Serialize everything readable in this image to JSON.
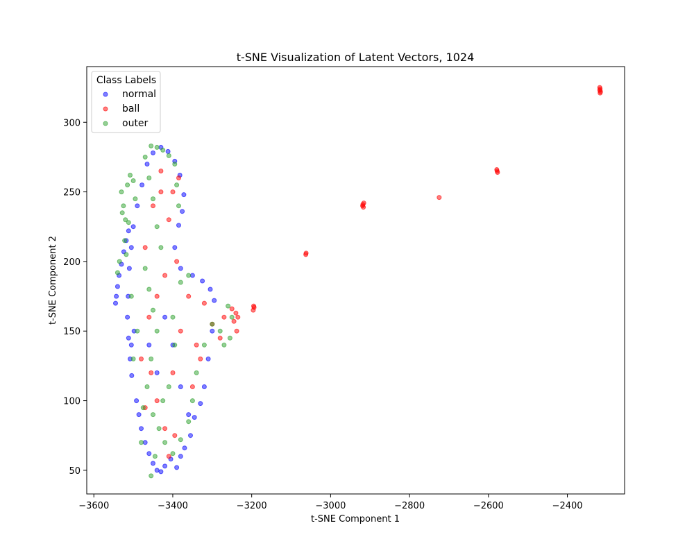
{
  "chart_data": {
    "type": "scatter",
    "title": "t-SNE Visualization of Latent Vectors, 1024",
    "xlabel": "t-SNE Component 1",
    "ylabel": "t-SNE Component 2",
    "xlim": [
      -3618,
      -2255
    ],
    "ylim": [
      33,
      340
    ],
    "xticks": [
      -3600,
      -3400,
      -3200,
      -3000,
      -2800,
      -2600,
      -2400
    ],
    "xtick_labels": [
      "−3600",
      "−3400",
      "−3200",
      "−3000",
      "−2800",
      "−2600",
      "−2400"
    ],
    "yticks": [
      50,
      100,
      150,
      200,
      250,
      300
    ],
    "ytick_labels": [
      "50",
      "100",
      "150",
      "200",
      "250",
      "300"
    ],
    "grid": false,
    "legend": {
      "title": "Class Labels",
      "placement": "top-left",
      "entries": [
        "normal",
        "ball",
        "outer"
      ]
    },
    "series": [
      {
        "name": "normal",
        "color": "#0000ff",
        "points": [
          [
            -3545,
            170
          ],
          [
            -3543,
            175
          ],
          [
            -3540,
            182
          ],
          [
            -3536,
            190
          ],
          [
            -3530,
            198
          ],
          [
            -3524,
            207
          ],
          [
            -3518,
            215
          ],
          [
            -3512,
            222
          ],
          [
            -3505,
            140
          ],
          [
            -3498,
            150
          ],
          [
            -3492,
            100
          ],
          [
            -3486,
            90
          ],
          [
            -3480,
            80
          ],
          [
            -3470,
            70
          ],
          [
            -3460,
            62
          ],
          [
            -3450,
            55
          ],
          [
            -3440,
            50
          ],
          [
            -3430,
            49
          ],
          [
            -3420,
            53
          ],
          [
            -3405,
            58
          ],
          [
            -3390,
            52
          ],
          [
            -3380,
            60
          ],
          [
            -3370,
            66
          ],
          [
            -3355,
            75
          ],
          [
            -3345,
            88
          ],
          [
            -3330,
            98
          ],
          [
            -3320,
            110
          ],
          [
            -3310,
            130
          ],
          [
            -3300,
            150
          ],
          [
            -3295,
            172
          ],
          [
            -3305,
            180
          ],
          [
            -3325,
            186
          ],
          [
            -3350,
            190
          ],
          [
            -3380,
            195
          ],
          [
            -3395,
            210
          ],
          [
            -3385,
            226
          ],
          [
            -3376,
            236
          ],
          [
            -3372,
            248
          ],
          [
            -3382,
            262
          ],
          [
            -3395,
            272
          ],
          [
            -3412,
            279
          ],
          [
            -3430,
            282
          ],
          [
            -3450,
            278
          ],
          [
            -3465,
            270
          ],
          [
            -3478,
            255
          ],
          [
            -3490,
            240
          ],
          [
            -3500,
            225
          ],
          [
            -3505,
            210
          ],
          [
            -3510,
            195
          ],
          [
            -3513,
            175
          ],
          [
            -3515,
            160
          ],
          [
            -3512,
            145
          ],
          [
            -3508,
            130
          ],
          [
            -3504,
            118
          ],
          [
            -3460,
            140
          ],
          [
            -3440,
            120
          ],
          [
            -3420,
            160
          ],
          [
            -3400,
            140
          ],
          [
            -3380,
            110
          ],
          [
            -3360,
            90
          ]
        ]
      },
      {
        "name": "ball",
        "color": "#ff0000",
        "points": [
          [
            -2318,
            323
          ],
          [
            -2317,
            324
          ],
          [
            -2316,
            322
          ],
          [
            -2317,
            321
          ],
          [
            -2318,
            325
          ],
          [
            -2578,
            265
          ],
          [
            -2579,
            266
          ],
          [
            -2577,
            264
          ],
          [
            -2725,
            246
          ],
          [
            -2918,
            241
          ],
          [
            -2917,
            239
          ],
          [
            -2919,
            240
          ],
          [
            -2916,
            242
          ],
          [
            -3062,
            206
          ],
          [
            -3063,
            205
          ],
          [
            -3195,
            168
          ],
          [
            -3196,
            165
          ],
          [
            -3194,
            167
          ],
          [
            -3235,
            160
          ],
          [
            -3238,
            150
          ],
          [
            -3240,
            163
          ],
          [
            -3245,
            157
          ],
          [
            -3250,
            166
          ],
          [
            -3480,
            130
          ],
          [
            -3460,
            160
          ],
          [
            -3440,
            100
          ],
          [
            -3420,
            80
          ],
          [
            -3400,
            120
          ],
          [
            -3380,
            150
          ],
          [
            -3360,
            175
          ],
          [
            -3340,
            140
          ],
          [
            -3320,
            170
          ],
          [
            -3300,
            155
          ],
          [
            -3470,
            210
          ],
          [
            -3450,
            240
          ],
          [
            -3430,
            265
          ],
          [
            -3410,
            230
          ],
          [
            -3390,
            200
          ],
          [
            -3420,
            190
          ],
          [
            -3440,
            175
          ],
          [
            -3410,
            60
          ],
          [
            -3395,
            75
          ],
          [
            -3470,
            95
          ],
          [
            -3455,
            120
          ],
          [
            -3385,
            260
          ],
          [
            -3400,
            250
          ],
          [
            -3430,
            250
          ],
          [
            -3350,
            110
          ],
          [
            -3330,
            130
          ],
          [
            -3280,
            145
          ],
          [
            -3270,
            160
          ]
        ]
      },
      {
        "name": "outer",
        "color": "#2ca02c",
        "points": [
          [
            -3530,
            250
          ],
          [
            -3525,
            240
          ],
          [
            -3520,
            230
          ],
          [
            -3515,
            255
          ],
          [
            -3508,
            262
          ],
          [
            -3500,
            258
          ],
          [
            -3495,
            245
          ],
          [
            -3528,
            235
          ],
          [
            -3522,
            215
          ],
          [
            -3518,
            205
          ],
          [
            -3540,
            192
          ],
          [
            -3535,
            200
          ],
          [
            -3470,
            275
          ],
          [
            -3455,
            283
          ],
          [
            -3440,
            282
          ],
          [
            -3425,
            280
          ],
          [
            -3410,
            276
          ],
          [
            -3395,
            270
          ],
          [
            -3390,
            255
          ],
          [
            -3385,
            240
          ],
          [
            -3460,
            260
          ],
          [
            -3450,
            245
          ],
          [
            -3440,
            225
          ],
          [
            -3430,
            210
          ],
          [
            -3470,
            195
          ],
          [
            -3460,
            180
          ],
          [
            -3450,
            165
          ],
          [
            -3440,
            150
          ],
          [
            -3455,
            130
          ],
          [
            -3465,
            110
          ],
          [
            -3475,
            95
          ],
          [
            -3450,
            90
          ],
          [
            -3435,
            80
          ],
          [
            -3420,
            70
          ],
          [
            -3400,
            62
          ],
          [
            -3380,
            72
          ],
          [
            -3360,
            85
          ],
          [
            -3350,
            100
          ],
          [
            -3340,
            120
          ],
          [
            -3320,
            140
          ],
          [
            -3300,
            155
          ],
          [
            -3280,
            150
          ],
          [
            -3270,
            140
          ],
          [
            -3255,
            145
          ],
          [
            -3250,
            160
          ],
          [
            -3260,
            168
          ],
          [
            -3400,
            160
          ],
          [
            -3380,
            185
          ],
          [
            -3360,
            190
          ],
          [
            -3395,
            140
          ],
          [
            -3410,
            110
          ],
          [
            -3425,
            100
          ],
          [
            -3490,
            150
          ],
          [
            -3500,
            130
          ],
          [
            -3455,
            46
          ],
          [
            -3445,
            60
          ],
          [
            -3480,
            70
          ],
          [
            -3505,
            175
          ],
          [
            -3512,
            228
          ]
        ]
      }
    ]
  }
}
